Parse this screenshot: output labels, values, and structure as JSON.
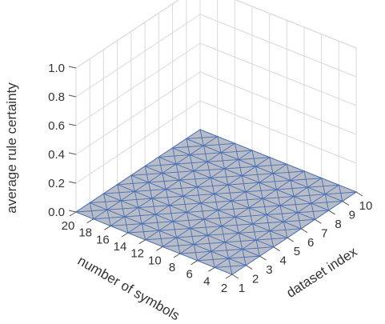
{
  "chart_data": {
    "type": "surface",
    "zlabel": "average rule certainty",
    "xlabel": "number of symbols",
    "ylabel": "dataset index",
    "z_ticks": [
      "0.0",
      "0.2",
      "0.4",
      "0.6",
      "0.8",
      "1.0"
    ],
    "x_ticks": [
      "2",
      "4",
      "6",
      "8",
      "10",
      "12",
      "14",
      "16",
      "18",
      "20"
    ],
    "y_ticks": [
      "1",
      "2",
      "3",
      "4",
      "5",
      "6",
      "7",
      "8",
      "9",
      "10"
    ],
    "x": [
      2,
      4,
      6,
      8,
      10,
      12,
      14,
      16,
      18,
      20
    ],
    "y": [
      1,
      2,
      3,
      4,
      5,
      6,
      7,
      8,
      9,
      10
    ],
    "z_value": 0.0,
    "zlim": [
      0,
      1
    ],
    "grid": true,
    "colors": {
      "surface": "#b8bcc6",
      "edge": "#4a6fb5"
    }
  }
}
